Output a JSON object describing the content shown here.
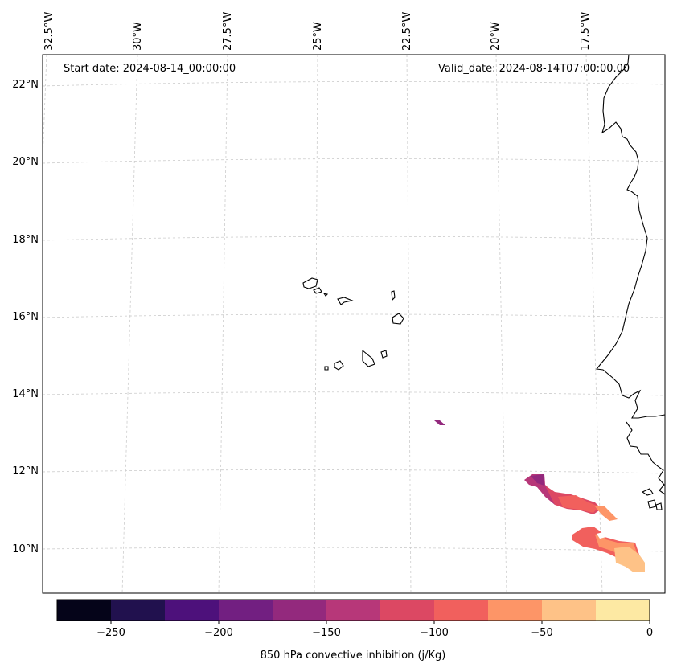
{
  "map": {
    "start_date": "Start date: 2024-08-14_00:00:00",
    "valid_date": "Valid_date: 2024-08-14T07:00:00.00",
    "lon_labels": [
      "32.5°W",
      "30°W",
      "27.5°W",
      "25°W",
      "22.5°W",
      "20°W",
      "17.5°W"
    ],
    "lat_labels": [
      "22°N",
      "20°N",
      "18°N",
      "16°N",
      "14°N",
      "12°N",
      "10°N"
    ]
  },
  "colorbar": {
    "label": "850 hPa convective inhibition (j/Kg)",
    "ticks": [
      "−250",
      "−200",
      "−150",
      "−100",
      "−50",
      "0"
    ],
    "colors": [
      "#050419",
      "#21114e",
      "#4d117b",
      "#721f81",
      "#93297d",
      "#b73779",
      "#dc4863",
      "#f1605d",
      "#fd9567",
      "#fec287",
      "#fde9a3"
    ]
  },
  "colors": {
    "grid": "#cccccc",
    "coast": "#000000"
  }
}
